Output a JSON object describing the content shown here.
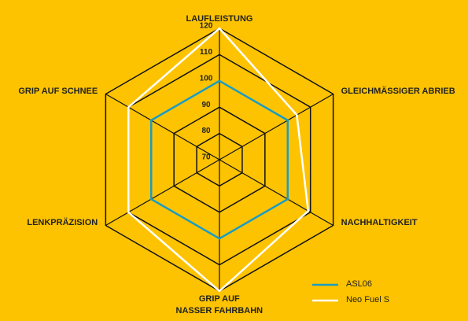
{
  "chart_data": {
    "type": "radar",
    "categories": [
      "LAUFLEISTUNG",
      "GLEICHMÄSSIGER ABRIEB",
      "NACHHALTIGKEIT",
      "GRIP AUF\nNASSER FAHRBAHN",
      "LENKPRÄZISION",
      "GRIP AUF SCHNEE"
    ],
    "series": [
      {
        "name": "ASL06",
        "color": "#1a9cc4",
        "values": [
          100,
          100,
          100,
          100,
          100,
          100
        ]
      },
      {
        "name": "Neo Fuel S",
        "color": "#ffffff",
        "values": [
          120,
          104,
          109,
          120,
          110,
          110
        ]
      }
    ],
    "rlim": [
      70,
      120
    ],
    "rticks": [
      70,
      80,
      90,
      100,
      110,
      120
    ],
    "grid": true,
    "legend": "lower right"
  }
}
